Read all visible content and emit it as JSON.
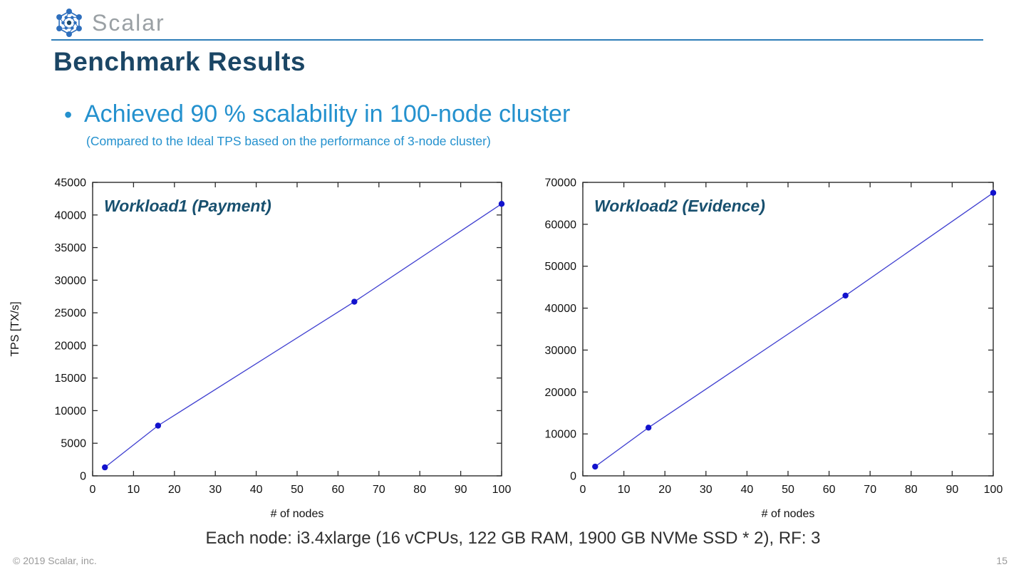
{
  "header": {
    "logo_text": "Scalar",
    "page_title": "Benchmark Results"
  },
  "bullet": {
    "dot": "•",
    "text": "Achieved 90 % scalability in 100-node cluster",
    "subtext": "(Compared to the Ideal TPS based on the performance of 3-node cluster)"
  },
  "footnote": "Each node: i3.4xlarge (16 vCPUs, 122 GB RAM, 1900 GB NVMe SSD * 2), RF: 3",
  "footer": {
    "copyright": "© 2019 Scalar, inc.",
    "page_number": "15"
  },
  "colors": {
    "title_navy": "#1b4665",
    "accent_blue": "#2491ce",
    "rule_blue": "#2e7db8",
    "chart_title": "#18506f",
    "line_blue": "#3f3fd0",
    "marker_blue": "#1212cd",
    "axis_text": "#111111",
    "axis_box": "#2a2a2a",
    "logo_blue": "#2e6fbd",
    "logo_gray": "#9aa0a4",
    "footer_gray": "#9a9a9a"
  },
  "chart_data": [
    {
      "type": "line",
      "title": "Workload1 (Payment)",
      "xlabel": "# of nodes",
      "ylabel": "TPS [TX/s]",
      "xlim": [
        0,
        100
      ],
      "ylim": [
        0,
        45000
      ],
      "grid": false,
      "legend": "none",
      "x_ticks": [
        0,
        10,
        20,
        30,
        40,
        50,
        60,
        70,
        80,
        90,
        100
      ],
      "y_ticks": [
        0,
        5000,
        10000,
        15000,
        20000,
        25000,
        30000,
        35000,
        40000,
        45000
      ],
      "x": [
        3,
        16,
        64,
        100
      ],
      "y": [
        1300,
        7700,
        26700,
        41700
      ]
    },
    {
      "type": "line",
      "title": "Workload2 (Evidence)",
      "xlabel": "# of nodes",
      "ylabel": "",
      "xlim": [
        0,
        100
      ],
      "ylim": [
        0,
        70000
      ],
      "grid": false,
      "legend": "none",
      "x_ticks": [
        0,
        10,
        20,
        30,
        40,
        50,
        60,
        70,
        80,
        90,
        100
      ],
      "y_ticks": [
        0,
        10000,
        20000,
        30000,
        40000,
        50000,
        60000,
        70000
      ],
      "x": [
        3,
        16,
        64,
        100
      ],
      "y": [
        2200,
        11500,
        43000,
        67500
      ]
    }
  ]
}
